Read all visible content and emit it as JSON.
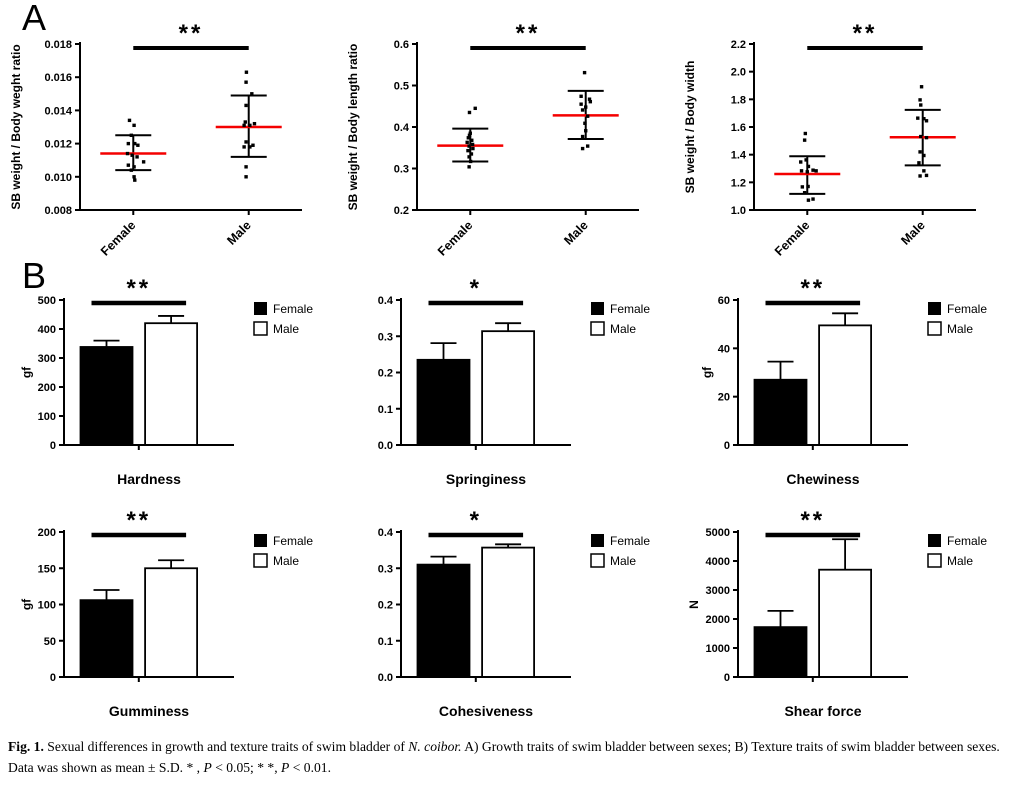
{
  "panels": {
    "a_label": "A",
    "b_label": "B"
  },
  "colors": {
    "axis": "#000000",
    "female_fill": "#000000",
    "male_fill": "#ffffff",
    "mean_line": "#f40000"
  },
  "caption": {
    "fig_label": "Fig. 1.",
    "part1": "Sexual differences in growth and texture traits of swim bladder of ",
    "species": "N. coibor.",
    "part2": " A) Growth traits of swim bladder between sexes; B) Texture traits of swim bladder between sexes. Data was shown as mean ± S.D. * , ",
    "p1": "P",
    "part3": " < 0.05; * *, ",
    "p2": "P",
    "part4": " < 0.01."
  },
  "chart_data": [
    {
      "id": "sb-weight-body-weight-ratio",
      "type": "scatter",
      "panel": "A",
      "ylabel": "SB weight / Body weght ratio",
      "ylim": [
        0.008,
        0.018
      ],
      "yticks": [
        0.008,
        0.01,
        0.012,
        0.014,
        0.016,
        0.018
      ],
      "ytick_decimals": 3,
      "categories": [
        "Female",
        "Male"
      ],
      "significance": "**",
      "groups": [
        {
          "name": "Female",
          "mean": 0.0114,
          "sd_low": 0.0104,
          "sd_high": 0.0125,
          "points": [
            [
              -3.3,
              0.0134
            ],
            [
              0.7,
              0.0131
            ],
            [
              -1.7,
              0.0125
            ],
            [
              -4.3,
              0.012
            ],
            [
              1.3,
              0.012
            ],
            [
              4,
              0.0119
            ],
            [
              -5,
              0.0114
            ],
            [
              -1,
              0.0113
            ],
            [
              3.3,
              0.0112
            ],
            [
              9,
              0.0109
            ],
            [
              -4.3,
              0.0107
            ],
            [
              0.7,
              0.0106
            ],
            [
              -1.7,
              0.0104
            ],
            [
              0.7,
              0.01
            ],
            [
              1.3,
              0.0098
            ]
          ]
        },
        {
          "name": "Male",
          "mean": 0.013,
          "sd_low": 0.0112,
          "sd_high": 0.0149,
          "points": [
            [
              -2,
              0.0163
            ],
            [
              -2.3,
              0.0157
            ],
            [
              2.7,
              0.015
            ],
            [
              -2.3,
              0.0143
            ],
            [
              -3,
              0.0133
            ],
            [
              -4,
              0.0131
            ],
            [
              1,
              0.0131
            ],
            [
              5,
              0.0132
            ],
            [
              -2.3,
              0.0121
            ],
            [
              -4,
              0.0118
            ],
            [
              1,
              0.0118
            ],
            [
              3.7,
              0.0119
            ],
            [
              -2.3,
              0.0106
            ],
            [
              -2.3,
              0.01
            ]
          ]
        }
      ]
    },
    {
      "id": "sb-weight-body-length-ratio",
      "type": "scatter",
      "panel": "A",
      "ylabel": "SB weight / Body length ratio",
      "ylim": [
        0.2,
        0.6
      ],
      "yticks": [
        0.2,
        0.3,
        0.4,
        0.5,
        0.6
      ],
      "ytick_decimals": 1,
      "categories": [
        "Female",
        "Male"
      ],
      "significance": "**",
      "groups": [
        {
          "name": "Female",
          "mean": 0.355,
          "sd_low": 0.317,
          "sd_high": 0.396,
          "points": [
            [
              4.3,
              0.445
            ],
            [
              -0.7,
              0.435
            ],
            [
              0,
              0.385
            ],
            [
              -0.7,
              0.38
            ],
            [
              -1.7,
              0.374
            ],
            [
              1.3,
              0.368
            ],
            [
              -2.7,
              0.363
            ],
            [
              2,
              0.358
            ],
            [
              -1,
              0.354
            ],
            [
              2.3,
              0.348
            ],
            [
              -2,
              0.343
            ],
            [
              1,
              0.335
            ],
            [
              -1,
              0.328
            ],
            [
              0.3,
              0.317
            ],
            [
              -1,
              0.304
            ]
          ]
        },
        {
          "name": "Male",
          "mean": 0.428,
          "sd_low": 0.371,
          "sd_high": 0.487,
          "points": [
            [
              -1,
              0.531
            ],
            [
              -4,
              0.474
            ],
            [
              3.3,
              0.467
            ],
            [
              4,
              0.461
            ],
            [
              -4,
              0.455
            ],
            [
              0,
              0.448
            ],
            [
              -2.7,
              0.441
            ],
            [
              1.7,
              0.426
            ],
            [
              -0.7,
              0.409
            ],
            [
              0,
              0.391
            ],
            [
              -2.7,
              0.377
            ],
            [
              1.7,
              0.354
            ],
            [
              -2.7,
              0.348
            ]
          ]
        }
      ]
    },
    {
      "id": "sb-weight-body-width",
      "type": "scatter",
      "panel": "A",
      "ylabel": "SB weight / Body width",
      "ylim": [
        1.0,
        2.2
      ],
      "yticks": [
        1.0,
        1.2,
        1.4,
        1.6,
        1.8,
        2.0,
        2.2
      ],
      "ytick_decimals": 1,
      "categories": [
        "Female",
        "Male"
      ],
      "significance": "**",
      "groups": [
        {
          "name": "Female",
          "mean": 1.26,
          "sd_low": 1.117,
          "sd_high": 1.389,
          "points": [
            [
              -1.7,
              1.553
            ],
            [
              -2.3,
              1.505
            ],
            [
              -1,
              1.362
            ],
            [
              -5.7,
              1.347
            ],
            [
              1,
              1.315
            ],
            [
              5,
              1.288
            ],
            [
              -5,
              1.283
            ],
            [
              0,
              1.276
            ],
            [
              7.7,
              1.283
            ],
            [
              -4.3,
              1.167
            ],
            [
              0.7,
              1.17
            ],
            [
              -2.3,
              1.125
            ],
            [
              1,
              1.071
            ],
            [
              5,
              1.079
            ]
          ]
        },
        {
          "name": "Male",
          "mean": 1.526,
          "sd_low": 1.323,
          "sd_high": 1.724,
          "points": [
            [
              -1,
              1.891
            ],
            [
              -2.3,
              1.796
            ],
            [
              -1.7,
              1.759
            ],
            [
              -4.3,
              1.664
            ],
            [
              1,
              1.66
            ],
            [
              3.3,
              1.645
            ],
            [
              -1.7,
              1.531
            ],
            [
              3.3,
              1.523
            ],
            [
              -2.3,
              1.42
            ],
            [
              1,
              1.394
            ],
            [
              -3.3,
              1.341
            ],
            [
              1,
              1.283
            ],
            [
              -2.3,
              1.246
            ],
            [
              3.3,
              1.25
            ]
          ]
        }
      ]
    },
    {
      "id": "hardness",
      "type": "bar",
      "panel": "B",
      "title": "Hardness",
      "ylabel": "gf",
      "ylim": [
        0,
        500
      ],
      "yticks": [
        0,
        100,
        200,
        300,
        400,
        500
      ],
      "ytick_decimals": 0,
      "significance": "**",
      "series": [
        {
          "name": "Female",
          "value": 338,
          "err_top": 360
        },
        {
          "name": "Male",
          "value": 420,
          "err_top": 445
        }
      ]
    },
    {
      "id": "springiness",
      "type": "bar",
      "panel": "B",
      "title": "Springiness",
      "ylabel": "",
      "ylim": [
        0,
        0.4
      ],
      "yticks": [
        0,
        0.1,
        0.2,
        0.3,
        0.4
      ],
      "ytick_decimals": 1,
      "significance": "*",
      "series": [
        {
          "name": "Female",
          "value": 0.235,
          "err_top": 0.281
        },
        {
          "name": "Male",
          "value": 0.314,
          "err_top": 0.336
        }
      ]
    },
    {
      "id": "chewiness",
      "type": "bar",
      "panel": "B",
      "title": "Chewiness",
      "ylabel": "gf",
      "ylim": [
        0,
        60
      ],
      "yticks": [
        0,
        20,
        40,
        60
      ],
      "ytick_decimals": 0,
      "significance": "**",
      "series": [
        {
          "name": "Female",
          "value": 27,
          "err_top": 34.5
        },
        {
          "name": "Male",
          "value": 49.5,
          "err_top": 54.5
        }
      ]
    },
    {
      "id": "gumminess",
      "type": "bar",
      "panel": "B",
      "title": "Gumminess",
      "ylabel": "gf",
      "ylim": [
        0,
        200
      ],
      "yticks": [
        0,
        50,
        100,
        150,
        200
      ],
      "ytick_decimals": 0,
      "significance": "**",
      "series": [
        {
          "name": "Female",
          "value": 106,
          "err_top": 120
        },
        {
          "name": "Male",
          "value": 150,
          "err_top": 161
        }
      ]
    },
    {
      "id": "cohesiveness",
      "type": "bar",
      "panel": "B",
      "title": "Cohesiveness",
      "ylabel": "",
      "ylim": [
        0,
        0.4
      ],
      "yticks": [
        0,
        0.1,
        0.2,
        0.3,
        0.4
      ],
      "ytick_decimals": 1,
      "significance": "*",
      "series": [
        {
          "name": "Female",
          "value": 0.31,
          "err_top": 0.332
        },
        {
          "name": "Male",
          "value": 0.357,
          "err_top": 0.366
        }
      ]
    },
    {
      "id": "shear-force",
      "type": "bar",
      "panel": "B",
      "title": "Shear force",
      "ylabel": "N",
      "ylim": [
        0,
        5000
      ],
      "yticks": [
        0,
        1000,
        2000,
        3000,
        4000,
        5000
      ],
      "ytick_decimals": 0,
      "significance": "**",
      "series": [
        {
          "name": "Female",
          "value": 1720,
          "err_top": 2280
        },
        {
          "name": "Male",
          "value": 3700,
          "err_top": 4750
        }
      ]
    }
  ]
}
